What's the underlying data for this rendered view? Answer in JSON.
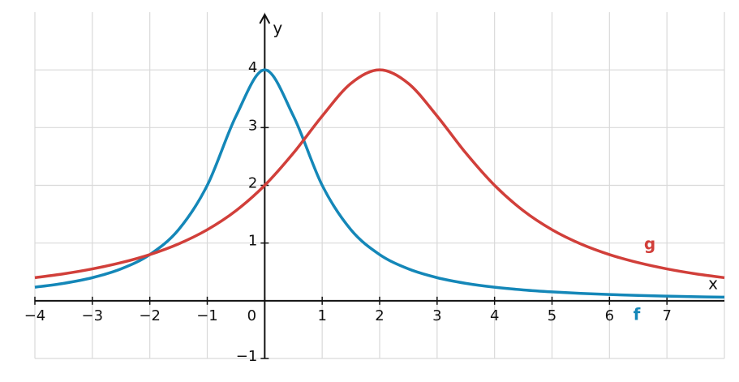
{
  "chart_data": {
    "type": "line",
    "x_label": "x",
    "y_label": "y",
    "x": [
      -4,
      -3.5,
      -3,
      -2.5,
      -2,
      -1.5,
      -1,
      -0.5,
      0,
      0.5,
      1,
      1.5,
      2,
      2.5,
      3,
      3.5,
      4,
      4.5,
      5,
      5.5,
      6,
      6.5,
      7,
      7.5,
      8
    ],
    "series": [
      {
        "name": "f",
        "color": "#1487b8",
        "values": [
          0.235,
          0.302,
          0.4,
          0.552,
          0.8,
          1.231,
          2,
          3.2,
          4,
          3.2,
          2,
          1.231,
          0.8,
          0.552,
          0.4,
          0.302,
          0.235,
          0.188,
          0.154,
          0.128,
          0.108,
          0.092,
          0.08,
          0.07,
          0.062
        ]
      },
      {
        "name": "g",
        "color": "#d13f3a",
        "values": [
          0.4,
          0.467,
          0.552,
          0.66,
          0.8,
          0.985,
          1.231,
          1.561,
          2,
          2.56,
          3.2,
          3.765,
          4,
          3.765,
          3.2,
          2.56,
          2,
          1.561,
          1.231,
          0.985,
          0.8,
          0.66,
          0.552,
          0.467,
          0.4
        ]
      }
    ],
    "xlim": [
      -4,
      8
    ],
    "ylim": [
      -1,
      5
    ],
    "xticks": [
      {
        "value": -4,
        "label": "−4"
      },
      {
        "value": -3,
        "label": "−3"
      },
      {
        "value": -2,
        "label": "−2"
      },
      {
        "value": -1,
        "label": "−1"
      },
      0,
      1,
      2,
      3,
      4,
      5,
      6,
      7
    ],
    "yticks": [
      {
        "value": -1,
        "label": "−1"
      },
      1,
      2,
      3,
      4
    ],
    "grid": true
  }
}
